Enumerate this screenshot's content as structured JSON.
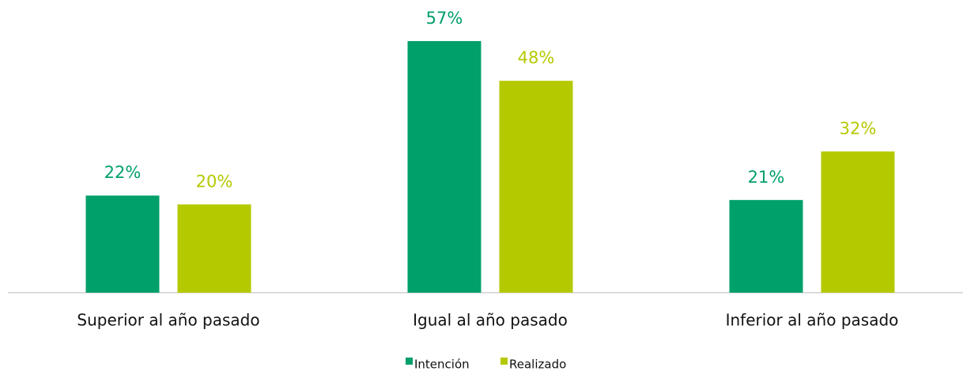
{
  "chart_data": {
    "type": "bar",
    "categories": [
      "Superior al año pasado",
      "Igual al año pasado",
      "Inferior al año pasado"
    ],
    "series": [
      {
        "name": "Intención",
        "color": "#00a06a",
        "values": [
          22,
          57,
          21
        ],
        "value_labels": [
          "22%",
          "57%",
          "21%"
        ]
      },
      {
        "name": "Realizado",
        "color": "#b5c900",
        "values": [
          20,
          48,
          32
        ],
        "value_labels": [
          "20%",
          "48%",
          "32%"
        ]
      }
    ]
  }
}
